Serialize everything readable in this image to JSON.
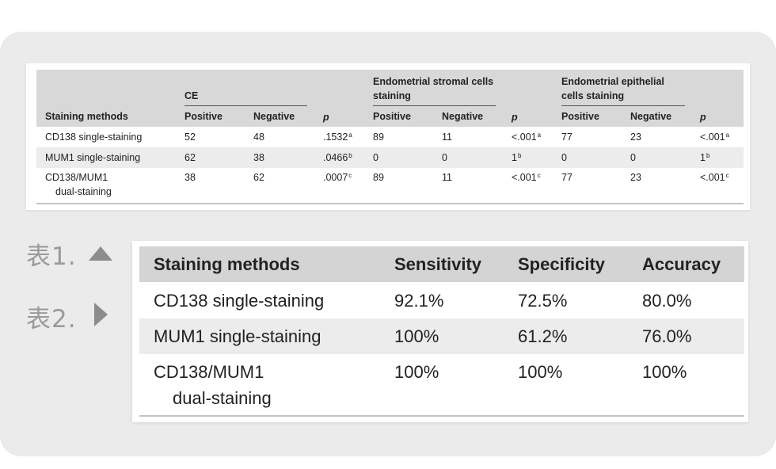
{
  "table1": {
    "header": {
      "methods": "Staining methods",
      "group_ce": "CE",
      "group_stromal_line1": "Endometrial stromal cells",
      "group_stromal_line2": "staining",
      "group_epithelial_line1": "Endometrial epithelial",
      "group_epithelial_line2": "cells staining",
      "positive": "Positive",
      "negative": "Negative",
      "p": "p"
    },
    "rows": [
      {
        "method": "CD138 single-staining",
        "method2": "",
        "ce_pos": "52",
        "ce_neg": "48",
        "ce_p": ".1532",
        "ce_p_sup": "a",
        "st_pos": "89",
        "st_neg": "11",
        "st_p": "<.001",
        "st_p_sup": "a",
        "ep_pos": "77",
        "ep_neg": "23",
        "ep_p": "<.001",
        "ep_p_sup": "a"
      },
      {
        "method": "MUM1 single-staining",
        "method2": "",
        "ce_pos": "62",
        "ce_neg": "38",
        "ce_p": ".0466",
        "ce_p_sup": "b",
        "st_pos": "0",
        "st_neg": "0",
        "st_p": "1",
        "st_p_sup": "b",
        "ep_pos": "0",
        "ep_neg": "0",
        "ep_p": "1",
        "ep_p_sup": "b"
      },
      {
        "method": "CD138/MUM1",
        "method2": "dual-staining",
        "ce_pos": "38",
        "ce_neg": "62",
        "ce_p": ".0007",
        "ce_p_sup": "c",
        "st_pos": "89",
        "st_neg": "11",
        "st_p": "<.001",
        "st_p_sup": "c",
        "ep_pos": "77",
        "ep_neg": "23",
        "ep_p": "<.001",
        "ep_p_sup": "c"
      }
    ]
  },
  "labels": {
    "table1_label": "表1.",
    "table2_label": "表2.",
    "up_icon": "triangle-up-icon",
    "right_icon": "triangle-right-icon"
  },
  "table2": {
    "header": {
      "methods": "Staining methods",
      "sensitivity": "Sensitivity",
      "specificity": "Specificity",
      "accuracy": "Accuracy"
    },
    "rows": [
      {
        "method": "CD138 single-staining",
        "method2": "",
        "sensitivity": "92.1%",
        "specificity": "72.5%",
        "accuracy": "80.0%"
      },
      {
        "method": "MUM1 single-staining",
        "method2": "",
        "sensitivity": "100%",
        "specificity": "61.2%",
        "accuracy": "76.0%"
      },
      {
        "method": "CD138/MUM1",
        "method2": "dual-staining",
        "sensitivity": "100%",
        "specificity": "100%",
        "accuracy": "100%"
      }
    ]
  },
  "colors": {
    "panel_bg": "#ebebeb",
    "header_bg": "#d8d8d8",
    "band_bg": "#ececec",
    "label_gray": "#9a9a9a"
  }
}
